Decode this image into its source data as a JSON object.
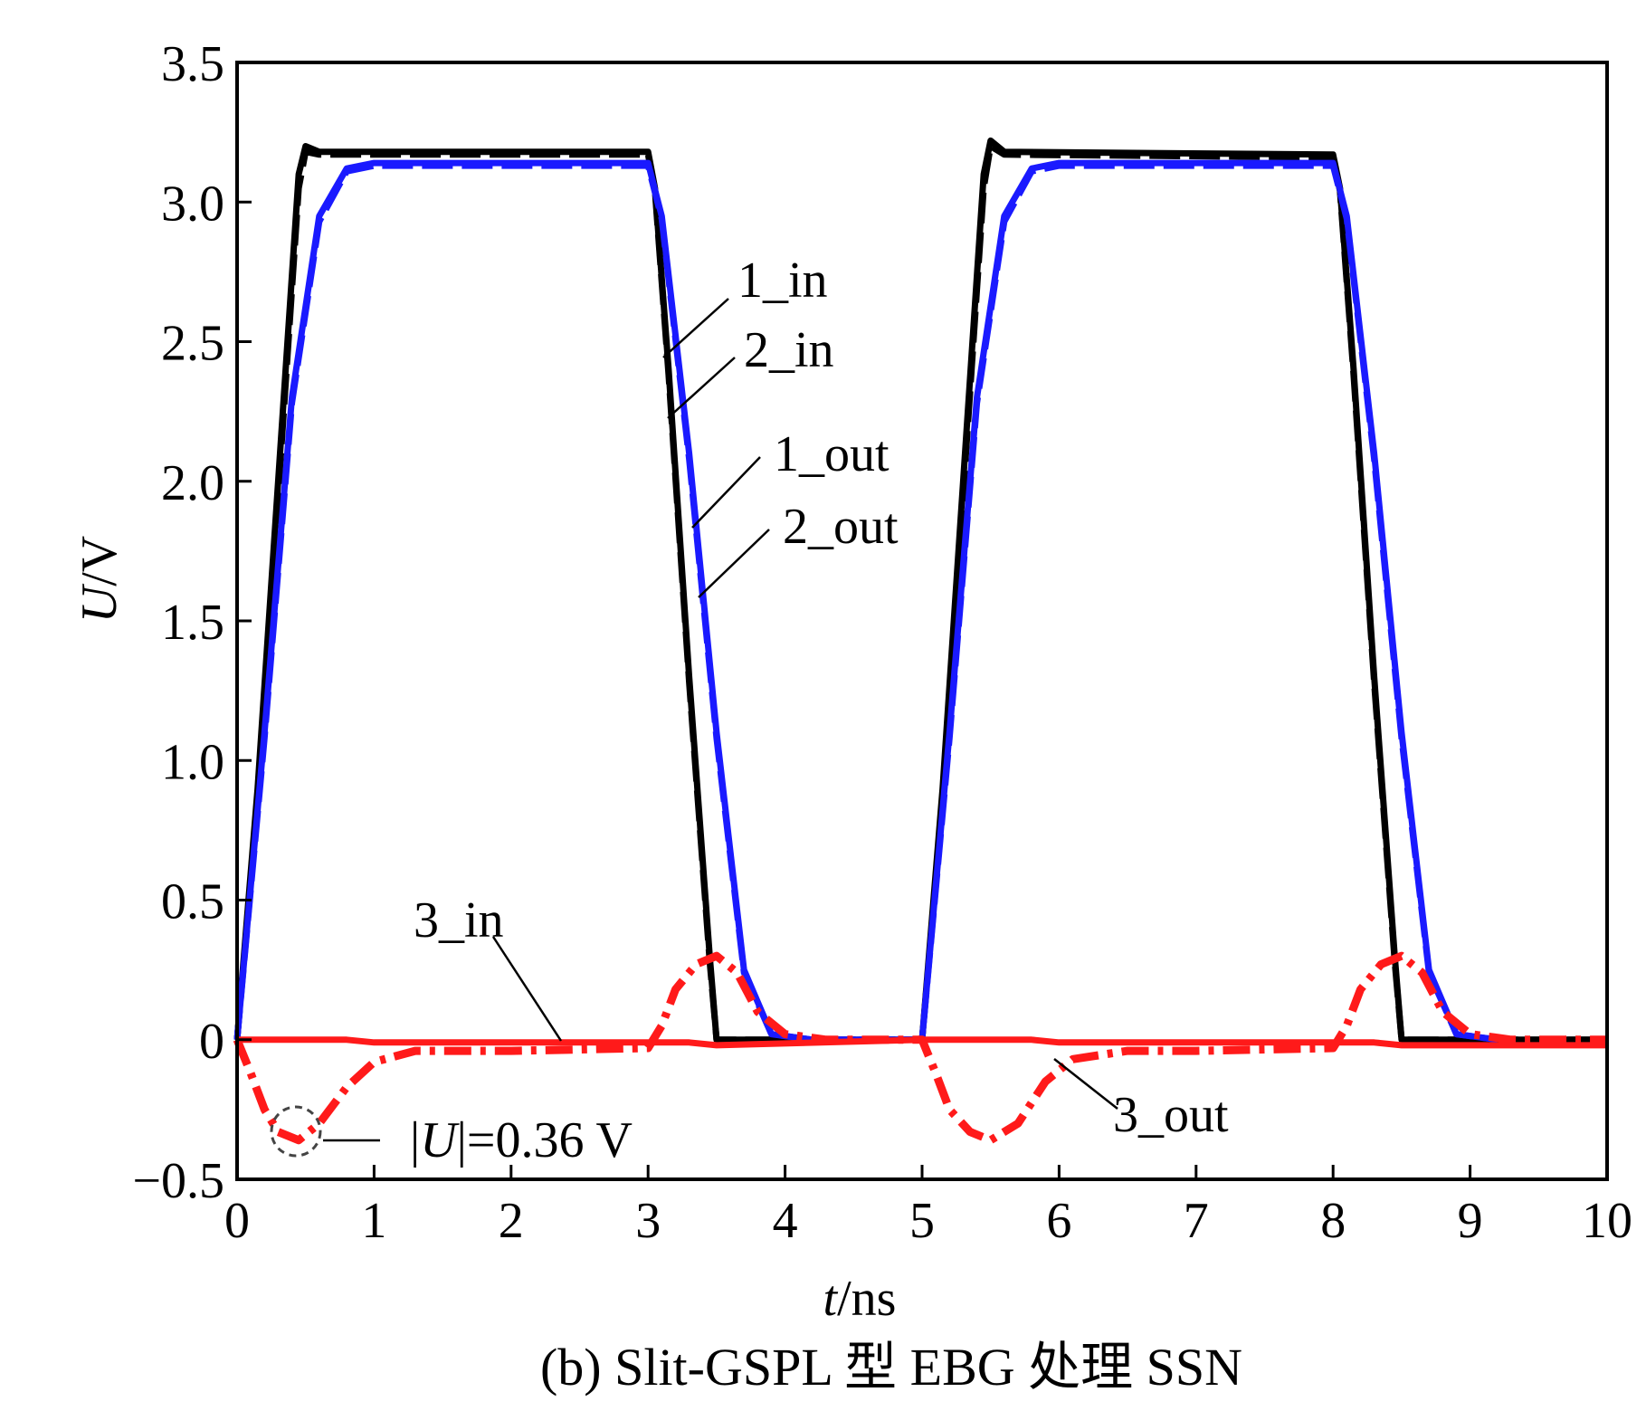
{
  "chart_data": {
    "type": "line",
    "title": "",
    "caption": "(b) Slit-GSPL 型 EBG 处理 SSN",
    "xlabel": {
      "italic": "t",
      "rest": "/ns"
    },
    "ylabel": {
      "italic": "U",
      "rest": "/V"
    },
    "xlim": [
      0,
      10
    ],
    "ylim": [
      -0.5,
      3.5
    ],
    "x_ticks": [
      "0",
      "1",
      "2",
      "3",
      "4",
      "5",
      "6",
      "7",
      "8",
      "9",
      "10"
    ],
    "y_ticks": [
      "−0.5",
      "0",
      "0.5",
      "1.0",
      "1.5",
      "2.0",
      "2.5",
      "3.0",
      "3.5"
    ],
    "grid": false,
    "legend": "none",
    "series": [
      {
        "name": "1_in",
        "color": "#000000",
        "style": "solid",
        "x": [
          0,
          0.15,
          0.3,
          0.45,
          0.5,
          0.6,
          3.0,
          3.05,
          3.15,
          3.3,
          3.45,
          3.5,
          5.0,
          5.15,
          5.3,
          5.45,
          5.5,
          5.6,
          8.0,
          8.05,
          8.15,
          8.3,
          8.45,
          8.5,
          10.0
        ],
        "y": [
          0,
          0.9,
          2.0,
          3.1,
          3.2,
          3.18,
          3.18,
          3.05,
          2.4,
          1.3,
          0.3,
          0.0,
          0.0,
          0.9,
          2.0,
          3.1,
          3.22,
          3.18,
          3.17,
          3.05,
          2.4,
          1.3,
          0.3,
          0.0,
          0.0
        ]
      },
      {
        "name": "2_in",
        "color": "#000000",
        "style": "dash",
        "x": [
          0,
          0.15,
          0.3,
          0.45,
          0.5,
          0.6,
          3.0,
          3.05,
          3.15,
          3.3,
          3.45,
          3.5,
          5.0,
          5.15,
          5.3,
          5.45,
          5.5,
          5.6,
          8.0,
          8.05,
          8.15,
          8.3,
          8.45,
          8.5,
          10.0
        ],
        "y": [
          0,
          0.85,
          1.95,
          3.05,
          3.18,
          3.17,
          3.17,
          3.04,
          2.38,
          1.28,
          0.28,
          0.0,
          0.0,
          0.85,
          1.95,
          3.05,
          3.2,
          3.17,
          3.16,
          3.04,
          2.38,
          1.28,
          0.28,
          0.0,
          0.0
        ]
      },
      {
        "name": "1_out",
        "color": "#1a1aff",
        "style": "solid",
        "x": [
          0,
          0.2,
          0.4,
          0.6,
          0.8,
          1.0,
          3.0,
          3.1,
          3.3,
          3.5,
          3.7,
          3.9,
          4.2,
          5.0,
          5.2,
          5.4,
          5.6,
          5.8,
          6.0,
          8.0,
          8.1,
          8.3,
          8.5,
          8.7,
          8.9,
          9.2
        ],
        "y": [
          0,
          1.1,
          2.3,
          2.95,
          3.12,
          3.14,
          3.14,
          2.95,
          2.1,
          1.1,
          0.25,
          0.02,
          0.0,
          0.0,
          1.1,
          2.3,
          2.95,
          3.12,
          3.14,
          3.14,
          2.95,
          2.1,
          1.1,
          0.25,
          0.02,
          0.0
        ]
      },
      {
        "name": "2_out",
        "color": "#1a1aff",
        "style": "dash",
        "x": [
          0,
          0.2,
          0.4,
          0.6,
          0.8,
          1.0,
          3.0,
          3.1,
          3.3,
          3.5,
          3.7,
          3.9,
          4.2,
          5.0,
          5.2,
          5.4,
          5.6,
          5.8,
          6.0,
          8.0,
          8.1,
          8.3,
          8.5,
          8.7,
          8.9,
          9.2
        ],
        "y": [
          0,
          1.08,
          2.28,
          2.93,
          3.11,
          3.13,
          3.13,
          2.94,
          2.08,
          1.08,
          0.24,
          0.02,
          0.0,
          0.0,
          1.08,
          2.28,
          2.93,
          3.11,
          3.13,
          3.13,
          2.94,
          2.08,
          1.08,
          0.24,
          0.02,
          0.0
        ]
      },
      {
        "name": "3_in",
        "color": "#ff1a1a",
        "style": "solid",
        "x": [
          0,
          0.8,
          1.0,
          3.3,
          3.5,
          5.0,
          5.2,
          5.8,
          6.0,
          8.3,
          8.5,
          10.0
        ],
        "y": [
          0.0,
          0.0,
          -0.01,
          -0.01,
          -0.02,
          0.0,
          0.0,
          0.0,
          -0.01,
          -0.01,
          -0.02,
          -0.02
        ]
      },
      {
        "name": "3_out",
        "color": "#ff1a1a",
        "style": "dashdot",
        "x": [
          0,
          0.1,
          0.2,
          0.3,
          0.45,
          0.6,
          0.8,
          1.0,
          1.3,
          2.0,
          3.0,
          3.1,
          3.2,
          3.35,
          3.5,
          3.65,
          3.8,
          4.0,
          4.3,
          5.0,
          5.1,
          5.2,
          5.35,
          5.5,
          5.7,
          5.9,
          6.1,
          6.5,
          7.0,
          8.0,
          8.1,
          8.2,
          8.35,
          8.5,
          8.65,
          8.8,
          9.0,
          9.3,
          10.0
        ],
        "y": [
          0.0,
          -0.12,
          -0.25,
          -0.33,
          -0.36,
          -0.3,
          -0.17,
          -0.08,
          -0.04,
          -0.04,
          -0.03,
          0.05,
          0.18,
          0.27,
          0.3,
          0.24,
          0.1,
          0.02,
          0.0,
          0.0,
          -0.12,
          -0.25,
          -0.33,
          -0.36,
          -0.3,
          -0.15,
          -0.07,
          -0.04,
          -0.04,
          -0.03,
          0.05,
          0.18,
          0.27,
          0.3,
          0.24,
          0.1,
          0.02,
          0.0,
          0.0
        ]
      }
    ],
    "annotations": [
      {
        "id": "1_in",
        "text": "1_in"
      },
      {
        "id": "2_in",
        "text": "2_in"
      },
      {
        "id": "1_out",
        "text": "1_out"
      },
      {
        "id": "2_out",
        "text": "2_out"
      },
      {
        "id": "3_in",
        "text": "3_in"
      },
      {
        "id": "3_out",
        "text": "3_out"
      },
      {
        "id": "umag",
        "text": "|U|=0.36 V"
      }
    ]
  }
}
